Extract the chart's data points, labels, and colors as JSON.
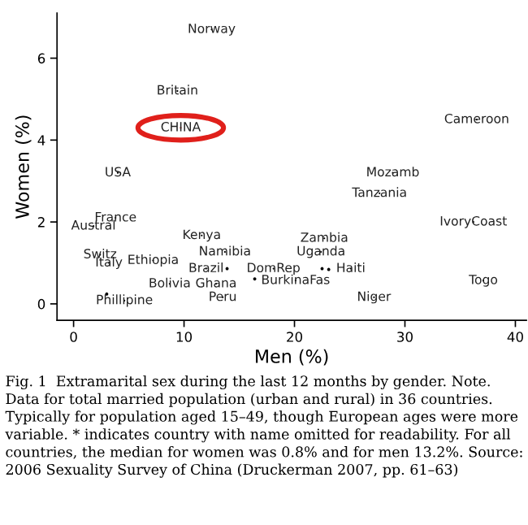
{
  "chart_data": {
    "type": "scatter",
    "xlabel": "Men (%)",
    "ylabel": "Women (%)",
    "xlim": [
      -1.5,
      41
    ],
    "ylim": [
      -0.4,
      7.1
    ],
    "xticks": [
      0,
      10,
      20,
      30,
      40
    ],
    "yticks": [
      0,
      2,
      4,
      6
    ],
    "grid": false,
    "legend": false,
    "series": [
      {
        "color": "#000000",
        "marker": "none",
        "x": [
          12.5,
          9.4,
          4.0,
          3.8,
          1.8,
          2.4,
          3.2,
          7.2,
          11.6,
          13.7,
          12.0,
          18.1,
          20.1,
          25.1,
          22.7,
          22.4,
          28.9,
          27.7,
          36.5,
          36.2,
          37.1,
          27.2,
          12.9,
          8.7,
          13.5,
          4.6
        ],
        "values": [
          6.7,
          5.2,
          3.2,
          2.1,
          1.9,
          1.2,
          1.0,
          1.06,
          1.67,
          1.27,
          0.86,
          0.86,
          0.57,
          0.86,
          1.6,
          1.27,
          3.2,
          2.7,
          4.5,
          2.0,
          0.57,
          0.16,
          0.49,
          0.49,
          0.16,
          0.08
        ],
        "value_labels": [
          "Norway",
          "Britain",
          "USA",
          "France",
          "Austral",
          "Switz",
          "Italy",
          "Ethiopia",
          "Kenya",
          "Namibia",
          "Brazil",
          "DomRep",
          "BurkinaFas",
          "Haiti",
          "Zambia",
          "Uganda",
          "Mozamb",
          "Tanzania",
          "Cameroon",
          "IvoryCoast",
          "Togo",
          "Niger",
          "Ghana",
          "Bolivia",
          "Peru",
          "Phillipine"
        ]
      },
      {
        "color": "#e0201b",
        "marker": "none",
        "x": [
          9.7
        ],
        "values": [
          4.3
        ],
        "value_labels": [
          "CHINA"
        ]
      },
      {
        "color": "#000000",
        "marker": "circle",
        "x": [
          13.9,
          16.4,
          22.5,
          23.1,
          3.0
        ],
        "values": [
          0.86,
          0.61,
          0.86,
          0.84,
          0.24
        ]
      }
    ],
    "annotations": [
      "Fig. 1  Extramarital sex during the last 12 months by gender. Note. Data for total married population (urban and rural) in 36 countries. Typically for population aged 15–49, though European ages were more variable. * indicates country with name omitted for readability. For all countries, the median for women was 0.8% and for men 13.2%. Source: 2006 Sexuality Survey of China (Druckerman 2007, pp. 61–63)"
    ]
  }
}
